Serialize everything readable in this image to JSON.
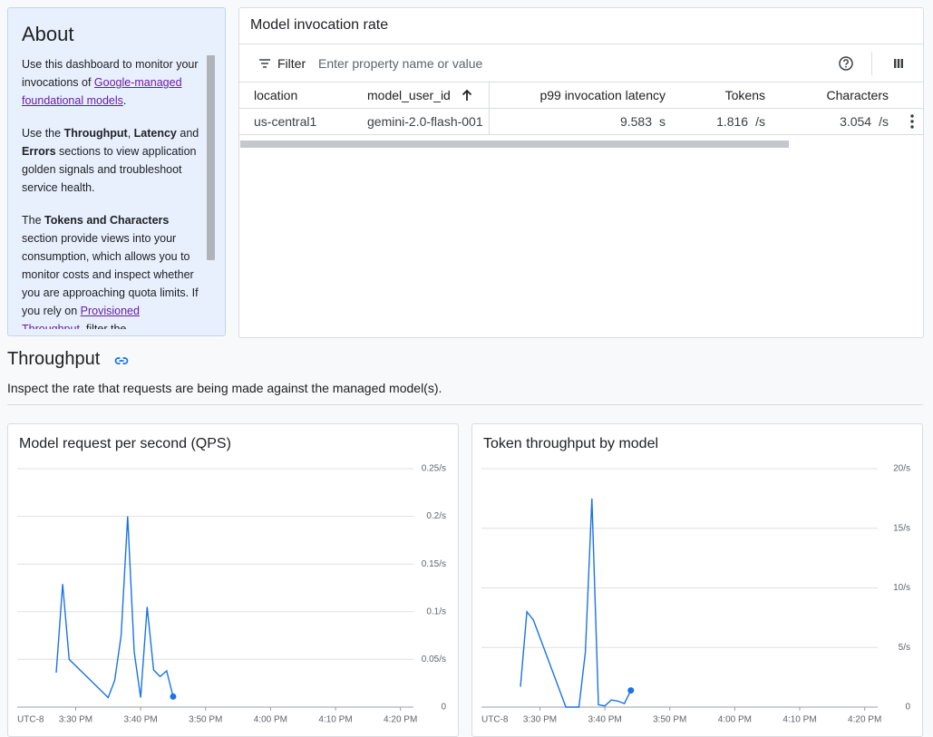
{
  "about": {
    "title": "About",
    "paragraphs": [
      [
        {
          "text": "Use this dashboard to monitor your invocations of ",
          "kind": "plain"
        },
        {
          "text": "Google-managed foundational models",
          "kind": "link"
        },
        {
          "text": ".",
          "kind": "plain"
        }
      ],
      [
        {
          "text": "Use the ",
          "kind": "plain"
        },
        {
          "text": "Throughput",
          "kind": "bold"
        },
        {
          "text": ", ",
          "kind": "plain"
        },
        {
          "text": "Latency",
          "kind": "bold"
        },
        {
          "text": " and ",
          "kind": "plain"
        },
        {
          "text": "Errors",
          "kind": "bold"
        },
        {
          "text": " sections to view application golden signals and troubleshoot service health.",
          "kind": "plain"
        }
      ],
      [
        {
          "text": "The ",
          "kind": "plain"
        },
        {
          "text": "Tokens and Characters",
          "kind": "bold"
        },
        {
          "text": " section provide views into your consumption, which allows you to monitor costs and inspect whether you are approaching quota limits. If you rely on ",
          "kind": "plain"
        },
        {
          "text": "Provisioned Throughput",
          "kind": "link"
        },
        {
          "text": ", filter the",
          "kind": "plain"
        }
      ]
    ]
  },
  "table": {
    "title": "Model invocation rate",
    "filter_label": "Filter",
    "filter_placeholder": "Enter property name or value",
    "columns": [
      "location",
      "model_user_id",
      "p99 invocation latency",
      "Tokens",
      "Characters"
    ],
    "rows": [
      [
        "us-central1",
        "gemini-2.0-flash-001",
        {
          "value": 9.583,
          "unit": "s"
        },
        {
          "value": 1.816,
          "unit": "/s"
        },
        {
          "value": 3.054,
          "unit": "/s"
        }
      ]
    ]
  },
  "section": {
    "title": "Throughput",
    "description": "Inspect the rate that requests are being made against the managed model(s)."
  },
  "chart_data": [
    {
      "type": "line",
      "title": "Model request per second (QPS)",
      "timezone": "UTC-8",
      "color": "#1a73e8",
      "grid": true,
      "x": [
        "15:27",
        "15:28",
        "15:29",
        "15:35",
        "15:36",
        "15:37",
        "15:38",
        "15:39",
        "15:40",
        "15:41",
        "15:42",
        "15:43",
        "15:44",
        "15:45"
      ],
      "values": [
        0.036,
        0.129,
        0.05,
        0.01,
        0.028,
        0.075,
        0.2,
        0.058,
        0.01,
        0.105,
        0.039,
        0.032,
        0.038,
        0.011
      ],
      "xlim": [
        "15:21",
        "16:22"
      ],
      "xticks": [
        {
          "value": "15:30",
          "label": "3:30 PM"
        },
        {
          "value": "15:40",
          "label": "3:40 PM"
        },
        {
          "value": "15:50",
          "label": "3:50 PM"
        },
        {
          "value": "16:00",
          "label": "4:00 PM"
        },
        {
          "value": "16:10",
          "label": "4:10 PM"
        },
        {
          "value": "16:20",
          "label": "4:20 PM"
        }
      ],
      "ylim": [
        0,
        0.25
      ],
      "yticks": [
        0,
        {
          "value": 0.05,
          "label": "0.05/s"
        },
        {
          "value": 0.1,
          "label": "0.1/s"
        },
        {
          "value": 0.15,
          "label": "0.15/s"
        },
        {
          "value": 0.2,
          "label": "0.2/s"
        },
        {
          "value": 0.25,
          "label": "0.25/s"
        }
      ]
    },
    {
      "type": "line",
      "title": "Token throughput by model",
      "timezone": "UTC-8",
      "color": "#1a73e8",
      "grid": true,
      "x": [
        "15:27",
        "15:28",
        "15:29",
        "15:34",
        "15:36",
        "15:37",
        "15:38",
        "15:39",
        "15:40",
        "15:41",
        "15:42",
        "15:43",
        "15:44"
      ],
      "values": [
        1.7,
        8.0,
        7.3,
        0,
        0,
        4.6,
        17.5,
        0.2,
        0.1,
        0.6,
        0.5,
        0.3,
        1.4
      ],
      "xlim": [
        "15:21",
        "16:22"
      ],
      "xticks": [
        {
          "value": "15:30",
          "label": "3:30 PM"
        },
        {
          "value": "15:40",
          "label": "3:40 PM"
        },
        {
          "value": "15:50",
          "label": "3:50 PM"
        },
        {
          "value": "16:00",
          "label": "4:00 PM"
        },
        {
          "value": "16:10",
          "label": "4:10 PM"
        },
        {
          "value": "16:20",
          "label": "4:20 PM"
        }
      ],
      "ylim": [
        0,
        20
      ],
      "yticks": [
        0,
        {
          "value": 5,
          "label": "5/s"
        },
        {
          "value": 10,
          "label": "10/s"
        },
        {
          "value": 15,
          "label": "15/s"
        },
        {
          "value": 20,
          "label": "20/s"
        }
      ]
    }
  ]
}
